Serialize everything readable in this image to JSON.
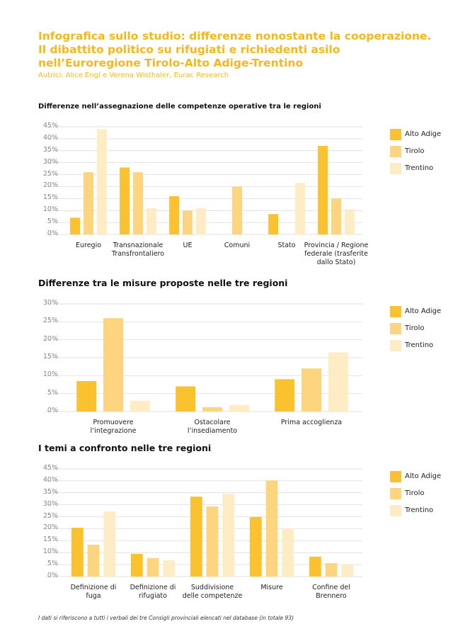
{
  "title": "Infografica sullo studio: differenze nonostante la cooperazione.\nIl dibattito politico su rifugiati e richiedenti asilo\nnell’Euroregione Tirolo-Alto Adige-Trentino",
  "authors": "Autrici: Alice Engl e Verena Wisthaler, Eurac Research",
  "footnote": "I dati si riferiscono a tutti i verbali dei tre Consigli provinciali elencati nel database (in totale 93)",
  "chart_data": [
    {
      "type": "bar",
      "title": "Differenze nell’assegnazione delle competenze operative tra le regioni",
      "categories": [
        "Euregio",
        "Transnazionale\nTransfrontaliero",
        "UE",
        "Comuni",
        "Stato",
        "Provincia / Regione\nfederale (trasferite\ndallo Stato)"
      ],
      "series": [
        {
          "name": "Alto Adige",
          "color": "#f9c22e",
          "values": [
            7,
            28,
            16,
            0,
            8.5,
            37
          ]
        },
        {
          "name": "Tirolo",
          "color": "#fdd57f",
          "values": [
            26,
            26,
            10,
            20,
            0,
            15
          ]
        },
        {
          "name": "Trentino",
          "color": "#feecc5",
          "values": [
            44,
            11,
            11,
            0,
            21.5,
            10.5
          ]
        }
      ],
      "ylim": [
        0,
        45
      ],
      "yticks": [
        {
          "value": 0,
          "label": "0%"
        },
        {
          "value": 5,
          "label": "5%"
        },
        {
          "value": 10,
          "label": "10%"
        },
        {
          "value": 15,
          "label": "15%"
        },
        {
          "value": 20,
          "label": "20%"
        },
        {
          "value": 25,
          "label": "25%"
        },
        {
          "value": 30,
          "label": "30%"
        },
        {
          "value": 35,
          "label": "35%"
        },
        {
          "value": 40,
          "label": "40%"
        },
        {
          "value": 45,
          "label": "45%"
        }
      ],
      "grid": true,
      "legend": "right"
    },
    {
      "type": "bar",
      "title": "Differenze tra le misure proposte nelle tre regioni",
      "categories": [
        "Promuovere l’integrazione",
        "Ostacolare l’insediamento",
        "Prima accoglienza"
      ],
      "series": [
        {
          "name": "Alto Adige",
          "color": "#f9c22e",
          "values": [
            8.5,
            7,
            9
          ]
        },
        {
          "name": "Tirolo",
          "color": "#fdd57f",
          "values": [
            26,
            1.2,
            12
          ]
        },
        {
          "name": "Trentino",
          "color": "#feecc5",
          "values": [
            3,
            1.8,
            16.5
          ]
        }
      ],
      "ylim": [
        0,
        30
      ],
      "yticks": [
        {
          "value": 0,
          "label": "0%"
        },
        {
          "value": 5,
          "label": "5%"
        },
        {
          "value": 10,
          "label": "10%"
        },
        {
          "value": 15,
          "label": "15%"
        },
        {
          "value": 20,
          "label": "20%"
        },
        {
          "value": 25,
          "label": "25%"
        },
        {
          "value": 30,
          "label": "30%"
        }
      ],
      "grid": true,
      "legend": "right"
    },
    {
      "type": "bar",
      "title": "I temi a confronto nelle tre regioni",
      "categories": [
        "Definizione di\nfuga",
        "Definizione di\nrifugiato",
        "Suddivisione\ndelle competenze",
        "Misure",
        "Confine del\nBrennero"
      ],
      "series": [
        {
          "name": "Alto Adige",
          "color": "#f9c22e",
          "values": [
            20.4,
            9.5,
            33.4,
            24.9,
            8.3
          ]
        },
        {
          "name": "Tirolo",
          "color": "#fdd57f",
          "values": [
            13.3,
            7.7,
            29.3,
            40.2,
            5.6
          ]
        },
        {
          "name": "Trentino",
          "color": "#feecc5",
          "values": [
            27.2,
            6.8,
            34.6,
            20.1,
            5
          ]
        }
      ],
      "ylim": [
        0,
        45
      ],
      "yticks": [
        {
          "value": 0,
          "label": "0%"
        },
        {
          "value": 5,
          "label": "5%"
        },
        {
          "value": 10,
          "label": "10%"
        },
        {
          "value": 15,
          "label": "15%"
        },
        {
          "value": 20,
          "label": "20%"
        },
        {
          "value": 25,
          "label": "25%"
        },
        {
          "value": 30,
          "label": "30%"
        },
        {
          "value": 35,
          "label": "35%"
        },
        {
          "value": 40,
          "label": "40%"
        },
        {
          "value": 45,
          "label": "45%"
        }
      ],
      "grid": true,
      "legend": "right"
    }
  ]
}
